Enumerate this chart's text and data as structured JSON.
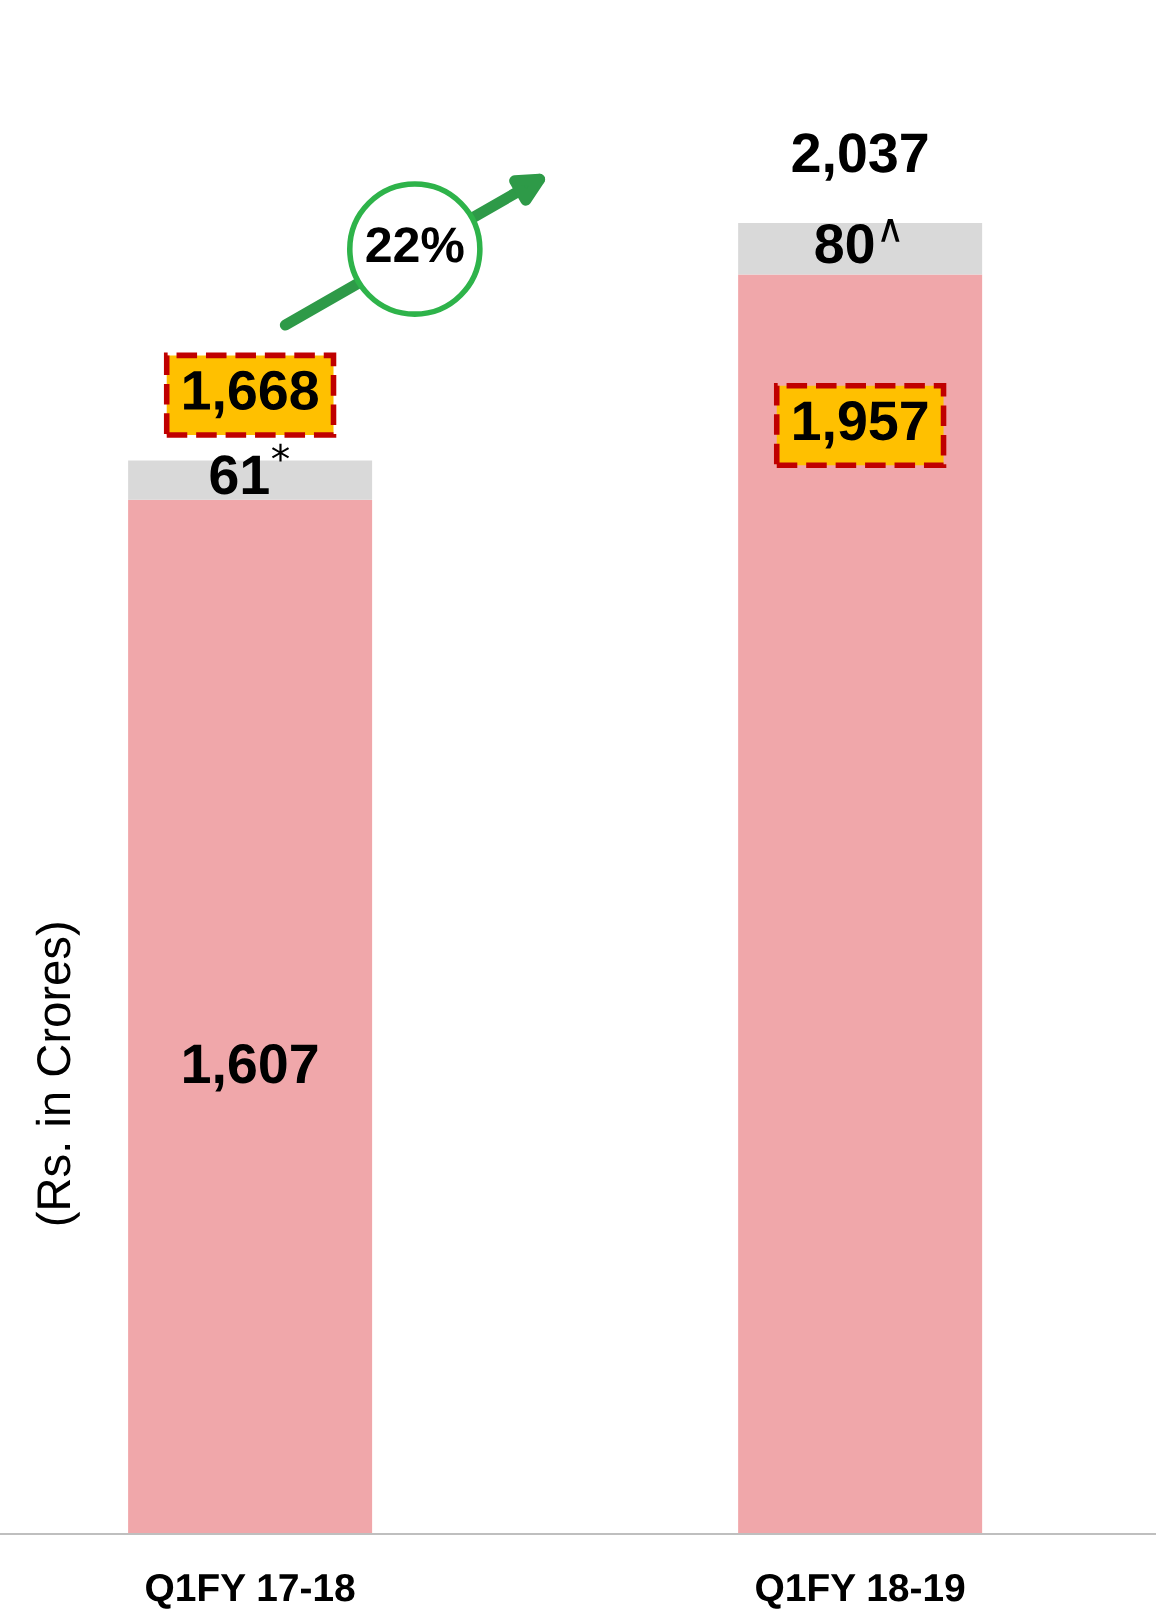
{
  "chart_data": {
    "type": "bar",
    "stacked": true,
    "ylabel": "(Rs. in Crores)",
    "categories": [
      "Q1FY 17-18",
      "Q1FY 18-19"
    ],
    "series": [
      {
        "color": "#f0a7aa",
        "values": [
          1607,
          1957
        ],
        "value_labels": [
          "1,607",
          "1,957"
        ]
      },
      {
        "color": "#d9d9d9",
        "values": [
          61,
          80
        ],
        "value_labels": [
          "61$^{*}$",
          "80$^{∧}$"
        ]
      }
    ],
    "totals": [
      "1,668",
      "2,037"
    ],
    "annotations": [
      "22%"
    ],
    "grid": false,
    "legend": false
  }
}
